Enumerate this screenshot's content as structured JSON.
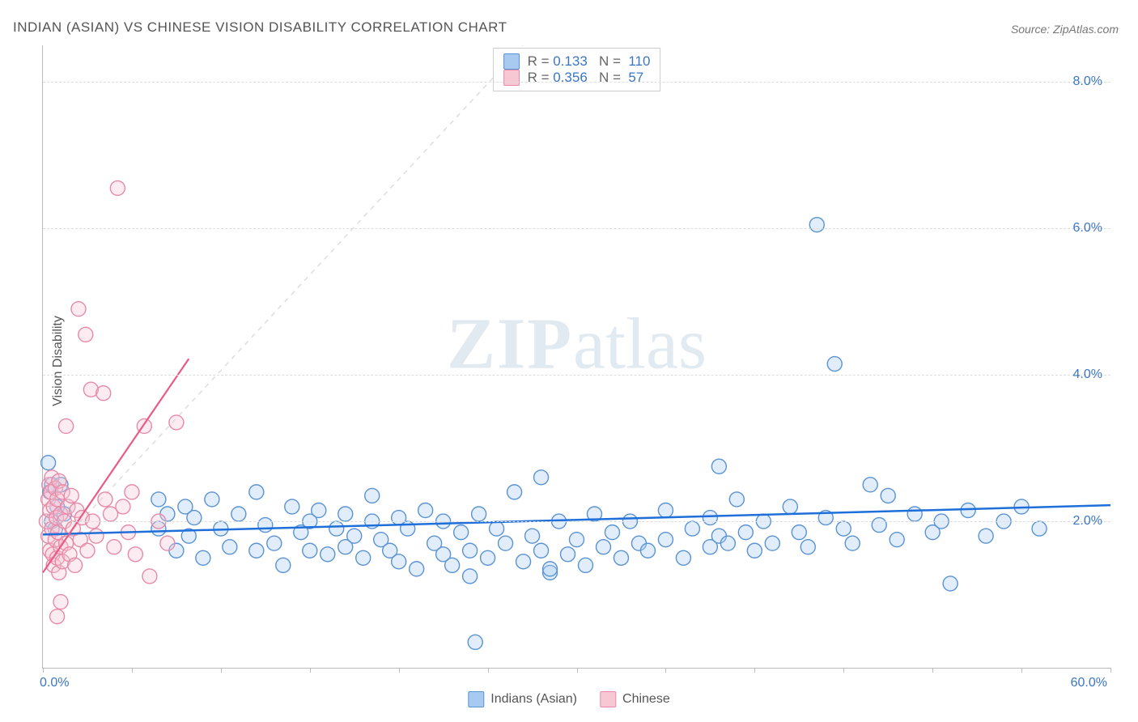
{
  "title": "INDIAN (ASIAN) VS CHINESE VISION DISABILITY CORRELATION CHART",
  "source": "Source: ZipAtlas.com",
  "y_axis_label": "Vision Disability",
  "watermark": {
    "bold": "ZIP",
    "rest": "atlas"
  },
  "chart": {
    "type": "scatter",
    "xlim": [
      0,
      60
    ],
    "ylim": [
      0,
      8.5
    ],
    "x_ticks": [
      0,
      5,
      10,
      15,
      20,
      25,
      30,
      35,
      40,
      45,
      50,
      55,
      60
    ],
    "x_tick_labels": {
      "0": "0.0%",
      "60": "60.0%"
    },
    "y_gridlines": [
      2.0,
      4.0,
      6.0,
      8.0
    ],
    "y_tick_labels": [
      "2.0%",
      "4.0%",
      "6.0%",
      "8.0%"
    ],
    "background_color": "#ffffff",
    "grid_color": "#dddddd",
    "axis_color": "#bbbbbb",
    "marker_radius": 9,
    "marker_stroke_width": 1.4,
    "marker_fill_opacity": 0.35,
    "series": [
      {
        "name": "Indians (Asian)",
        "color_fill": "#a8caf0",
        "color_stroke": "#5a93d4",
        "trend_color": "#1e6fd9",
        "trend_width": 2.5,
        "trend": {
          "x1": 0,
          "y1": 1.82,
          "x2": 60,
          "y2": 2.22
        },
        "points": [
          [
            0.3,
            2.8
          ],
          [
            0.4,
            2.4
          ],
          [
            0.5,
            2.0
          ],
          [
            0.5,
            2.5
          ],
          [
            0.7,
            1.9
          ],
          [
            0.8,
            2.2
          ],
          [
            1.0,
            2.5
          ],
          [
            1.2,
            2.1
          ],
          [
            6.5,
            1.9
          ],
          [
            6.5,
            2.3
          ],
          [
            7.0,
            2.1
          ],
          [
            7.5,
            1.6
          ],
          [
            8.0,
            2.2
          ],
          [
            8.2,
            1.8
          ],
          [
            8.5,
            2.05
          ],
          [
            9.0,
            1.5
          ],
          [
            9.5,
            2.3
          ],
          [
            10.0,
            1.9
          ],
          [
            10.5,
            1.65
          ],
          [
            11.0,
            2.1
          ],
          [
            12.0,
            1.6
          ],
          [
            12.0,
            2.4
          ],
          [
            12.5,
            1.95
          ],
          [
            13.0,
            1.7
          ],
          [
            13.5,
            1.4
          ],
          [
            14.0,
            2.2
          ],
          [
            14.5,
            1.85
          ],
          [
            15.0,
            1.6
          ],
          [
            15.0,
            2.0
          ],
          [
            15.5,
            2.15
          ],
          [
            16.0,
            1.55
          ],
          [
            16.5,
            1.9
          ],
          [
            17.0,
            1.65
          ],
          [
            17.0,
            2.1
          ],
          [
            17.5,
            1.8
          ],
          [
            18.0,
            1.5
          ],
          [
            18.5,
            2.0
          ],
          [
            18.5,
            2.35
          ],
          [
            19.0,
            1.75
          ],
          [
            19.5,
            1.6
          ],
          [
            20.0,
            2.05
          ],
          [
            20.0,
            1.45
          ],
          [
            20.5,
            1.9
          ],
          [
            21.0,
            1.35
          ],
          [
            21.5,
            2.15
          ],
          [
            22.0,
            1.7
          ],
          [
            22.5,
            1.55
          ],
          [
            22.5,
            2.0
          ],
          [
            23.0,
            1.4
          ],
          [
            23.5,
            1.85
          ],
          [
            24.0,
            1.6
          ],
          [
            24.0,
            1.25
          ],
          [
            24.3,
            0.35
          ],
          [
            24.5,
            2.1
          ],
          [
            25.0,
            1.5
          ],
          [
            25.5,
            1.9
          ],
          [
            26.0,
            1.7
          ],
          [
            26.5,
            2.4
          ],
          [
            27.0,
            1.45
          ],
          [
            27.5,
            1.8
          ],
          [
            28.0,
            1.6
          ],
          [
            28.0,
            2.6
          ],
          [
            28.5,
            1.3
          ],
          [
            28.5,
            1.35
          ],
          [
            29.0,
            2.0
          ],
          [
            29.5,
            1.55
          ],
          [
            30.0,
            1.75
          ],
          [
            30.5,
            1.4
          ],
          [
            31.0,
            2.1
          ],
          [
            31.5,
            1.65
          ],
          [
            32.0,
            1.85
          ],
          [
            32.5,
            1.5
          ],
          [
            33.0,
            2.0
          ],
          [
            33.5,
            1.7
          ],
          [
            34.0,
            1.6
          ],
          [
            35.0,
            2.15
          ],
          [
            35.0,
            1.75
          ],
          [
            36.0,
            1.5
          ],
          [
            36.5,
            1.9
          ],
          [
            37.5,
            2.05
          ],
          [
            37.5,
            1.65
          ],
          [
            38.0,
            1.8
          ],
          [
            38.0,
            2.75
          ],
          [
            38.5,
            1.7
          ],
          [
            39.0,
            2.3
          ],
          [
            39.5,
            1.85
          ],
          [
            40.0,
            1.6
          ],
          [
            40.5,
            2.0
          ],
          [
            41.0,
            1.7
          ],
          [
            42.0,
            2.2
          ],
          [
            42.5,
            1.85
          ],
          [
            43.0,
            1.65
          ],
          [
            44.0,
            2.05
          ],
          [
            44.5,
            4.15
          ],
          [
            45.0,
            1.9
          ],
          [
            45.5,
            1.7
          ],
          [
            46.5,
            2.5
          ],
          [
            43.5,
            6.05
          ],
          [
            47.0,
            1.95
          ],
          [
            47.5,
            2.35
          ],
          [
            48.0,
            1.75
          ],
          [
            49.0,
            2.1
          ],
          [
            50.0,
            1.85
          ],
          [
            50.5,
            2.0
          ],
          [
            51.0,
            1.15
          ],
          [
            52.0,
            2.15
          ],
          [
            53.0,
            1.8
          ],
          [
            54.0,
            2.0
          ],
          [
            55.0,
            2.2
          ],
          [
            56.0,
            1.9
          ]
        ]
      },
      {
        "name": "Chinese",
        "color_fill": "#f7c7d4",
        "color_stroke": "#e88aa7",
        "trend_color": "#e85b87",
        "trend_width": 2.2,
        "trend": {
          "x1": 0,
          "y1": 1.3,
          "x2": 8.2,
          "y2": 4.22
        },
        "diagonal_color": "#dddddd",
        "diagonal": {
          "x1": 0.2,
          "y1": 1.5,
          "x2": 27,
          "y2": 8.5
        },
        "points": [
          [
            0.2,
            2.0
          ],
          [
            0.3,
            2.3
          ],
          [
            0.3,
            1.8
          ],
          [
            0.35,
            2.5
          ],
          [
            0.4,
            1.6
          ],
          [
            0.4,
            2.15
          ],
          [
            0.45,
            2.4
          ],
          [
            0.5,
            1.9
          ],
          [
            0.5,
            2.6
          ],
          [
            0.55,
            1.55
          ],
          [
            0.6,
            2.2
          ],
          [
            0.6,
            1.4
          ],
          [
            0.7,
            2.45
          ],
          [
            0.7,
            1.75
          ],
          [
            0.75,
            2.05
          ],
          [
            0.8,
            1.5
          ],
          [
            0.8,
            2.3
          ],
          [
            0.85,
            1.85
          ],
          [
            0.9,
            2.55
          ],
          [
            0.9,
            1.3
          ],
          [
            1.0,
            2.1
          ],
          [
            1.0,
            1.65
          ],
          [
            1.1,
            2.4
          ],
          [
            1.1,
            1.45
          ],
          [
            1.2,
            2.0
          ],
          [
            1.3,
            3.3
          ],
          [
            1.3,
            1.7
          ],
          [
            1.4,
            2.2
          ],
          [
            1.5,
            1.55
          ],
          [
            1.6,
            2.35
          ],
          [
            1.7,
            1.9
          ],
          [
            1.8,
            1.4
          ],
          [
            1.9,
            2.15
          ],
          [
            2.0,
            4.9
          ],
          [
            2.1,
            1.75
          ],
          [
            2.2,
            2.05
          ],
          [
            2.4,
            4.55
          ],
          [
            2.5,
            1.6
          ],
          [
            2.7,
            3.8
          ],
          [
            2.8,
            2.0
          ],
          [
            3.0,
            1.8
          ],
          [
            3.4,
            3.75
          ],
          [
            3.5,
            2.3
          ],
          [
            3.8,
            2.1
          ],
          [
            4.0,
            1.65
          ],
          [
            4.2,
            6.55
          ],
          [
            4.5,
            2.2
          ],
          [
            4.8,
            1.85
          ],
          [
            5.0,
            2.4
          ],
          [
            5.2,
            1.55
          ],
          [
            5.7,
            3.3
          ],
          [
            6.0,
            1.25
          ],
          [
            6.5,
            2.0
          ],
          [
            7.0,
            1.7
          ],
          [
            7.5,
            3.35
          ],
          [
            0.8,
            0.7
          ],
          [
            1.0,
            0.9
          ]
        ]
      }
    ],
    "stats": [
      {
        "series": 0,
        "R": "0.133",
        "N": "110"
      },
      {
        "series": 1,
        "R": "0.356",
        "N": "57"
      }
    ],
    "bottom_legend": [
      {
        "series": 0,
        "label": "Indians (Asian)"
      },
      {
        "series": 1,
        "label": "Chinese"
      }
    ],
    "x_label_color": "#3b76c4",
    "y_label_color": "#3b76c4",
    "stats_value_color": "#3b76c4",
    "stats_label_color": "#666666"
  }
}
